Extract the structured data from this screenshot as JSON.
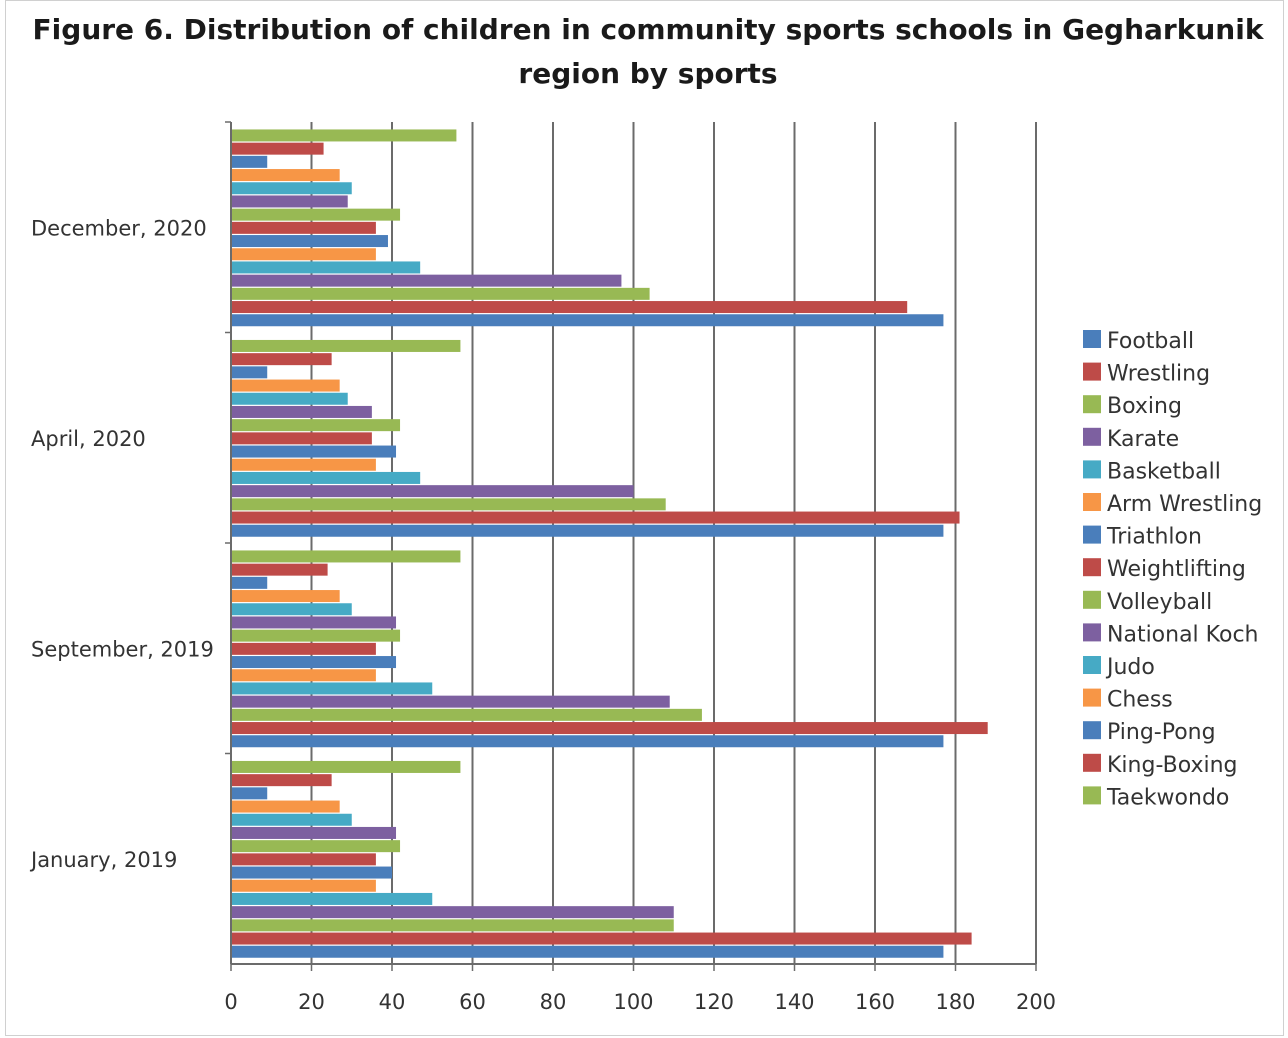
{
  "chart_data": {
    "type": "bar",
    "orientation": "horizontal",
    "title": "Figure 6. Distribution of children in community sports schools in Gegharkunik region by sports",
    "categories": [
      "January, 2019",
      "September, 2019",
      "April, 2020",
      "December, 2020"
    ],
    "xlim": [
      0,
      200
    ],
    "x_ticks": [
      0,
      20,
      40,
      60,
      80,
      100,
      120,
      140,
      160,
      180,
      200
    ],
    "grid": "vertical major gridlines",
    "legend_position": "right",
    "series": [
      {
        "name": "Football",
        "color": "#4a7ebb",
        "values": [
          177,
          177,
          177,
          177
        ]
      },
      {
        "name": "Wrestling",
        "color": "#be4b48",
        "values": [
          184,
          188,
          181,
          168
        ]
      },
      {
        "name": "Boxing",
        "color": "#98b954",
        "values": [
          110,
          117,
          108,
          104
        ]
      },
      {
        "name": "Karate",
        "color": "#7d60a0",
        "values": [
          110,
          109,
          100,
          97
        ]
      },
      {
        "name": "Basketball",
        "color": "#46aac5",
        "values": [
          50,
          50,
          47,
          47
        ]
      },
      {
        "name": "Arm Wrestling",
        "color": "#f79646",
        "values": [
          36,
          36,
          36,
          36
        ]
      },
      {
        "name": "Triathlon",
        "color": "#4a7ebb",
        "values": [
          40,
          41,
          41,
          39
        ]
      },
      {
        "name": "Weightlifting",
        "color": "#be4b48",
        "values": [
          36,
          36,
          35,
          36
        ]
      },
      {
        "name": "Volleyball",
        "color": "#98b954",
        "values": [
          42,
          42,
          42,
          42
        ]
      },
      {
        "name": "National Koch",
        "color": "#7d60a0",
        "values": [
          41,
          41,
          35,
          29
        ]
      },
      {
        "name": "Judo",
        "color": "#46aac5",
        "values": [
          30,
          30,
          29,
          30
        ]
      },
      {
        "name": "Chess",
        "color": "#f79646",
        "values": [
          27,
          27,
          27,
          27
        ]
      },
      {
        "name": "Ping-Pong",
        "color": "#4a7ebb",
        "values": [
          9,
          9,
          9,
          9
        ]
      },
      {
        "name": "King-Boxing",
        "color": "#be4b48",
        "values": [
          25,
          24,
          25,
          23
        ]
      },
      {
        "name": "Taekwondo",
        "color": "#98b954",
        "values": [
          57,
          57,
          57,
          56
        ]
      }
    ]
  }
}
